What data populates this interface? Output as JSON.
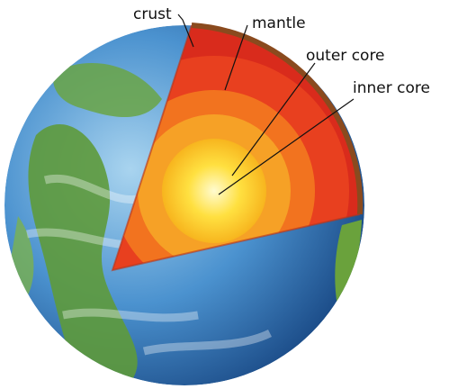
{
  "labels": [
    "crust",
    "mantle",
    "outer core",
    "inner core"
  ]
}
